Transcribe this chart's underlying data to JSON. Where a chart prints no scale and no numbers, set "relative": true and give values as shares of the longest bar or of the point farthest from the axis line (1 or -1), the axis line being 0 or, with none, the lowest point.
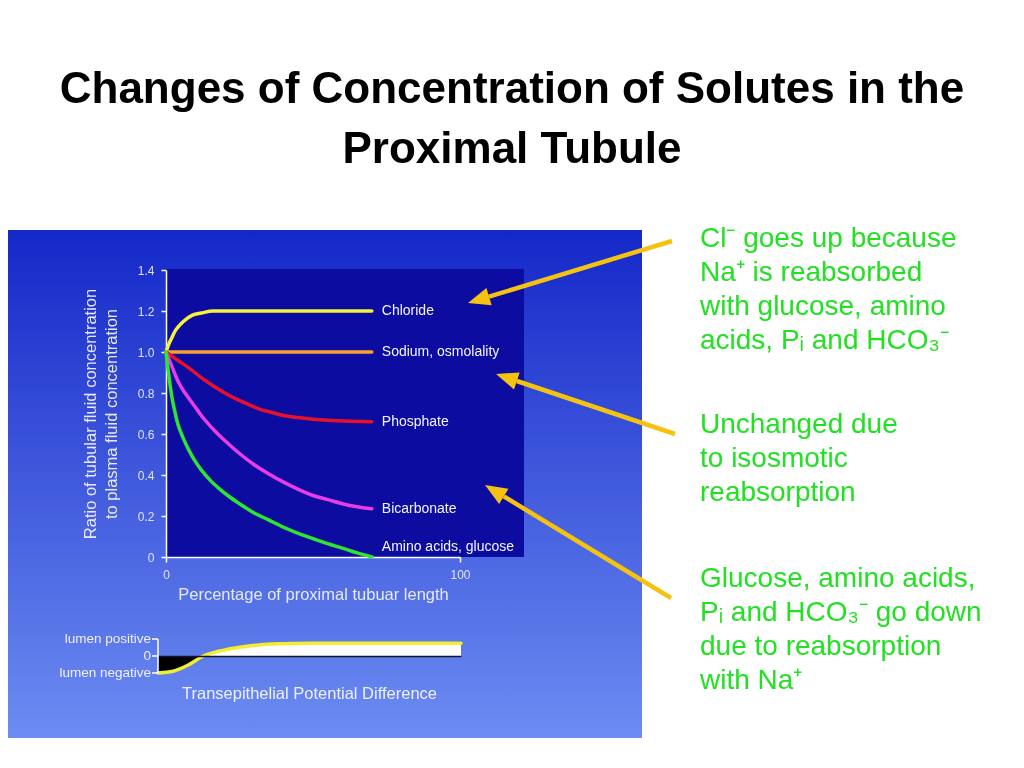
{
  "chart_data": [
    {
      "type": "line",
      "title": "Changes of Concentration of Solutes in the Proximal Tubule",
      "xlabel": "Percentage of proximal tubuar length",
      "ylabel": "Ratio of tubular fluid concentration\nto plasma fluid concentration",
      "xlim": [
        0,
        100
      ],
      "xticks": [
        0,
        100
      ],
      "ylim": [
        0,
        1.4
      ],
      "yticks": [
        0,
        0.2,
        0.4,
        0.6,
        0.8,
        {
          "value": 1,
          "label": "1.0"
        },
        1.2,
        1.4
      ],
      "series": [
        {
          "name": "Chloride",
          "color": "#f6f23a",
          "x": [
            0,
            1,
            2,
            3,
            4,
            6,
            9,
            12,
            16,
            70
          ],
          "values": [
            1,
            1.04,
            1.07,
            1.1,
            1.12,
            1.15,
            1.18,
            1.19,
            1.2,
            1.2
          ]
        },
        {
          "name": "Sodium, osmolality",
          "color": "#f5a030",
          "x": [
            0,
            70
          ],
          "values": [
            1,
            1
          ]
        },
        {
          "name": "Phosphate",
          "color": "#e8102c",
          "x": [
            0,
            4,
            8,
            12,
            16,
            20,
            24,
            28,
            32,
            36,
            40,
            45,
            50,
            55,
            60,
            70
          ],
          "values": [
            1,
            0.96,
            0.92,
            0.875,
            0.835,
            0.8,
            0.77,
            0.745,
            0.72,
            0.705,
            0.69,
            0.68,
            0.672,
            0.667,
            0.664,
            0.66
          ]
        },
        {
          "name": "Bicarbonate",
          "color": "#e83ce8",
          "x": [
            0,
            2,
            4,
            6,
            8,
            10,
            12,
            15,
            18,
            21,
            25,
            30,
            35,
            40,
            45,
            50,
            55,
            60,
            65,
            70
          ],
          "values": [
            1,
            0.93,
            0.86,
            0.81,
            0.77,
            0.73,
            0.69,
            0.64,
            0.595,
            0.555,
            0.505,
            0.45,
            0.405,
            0.365,
            0.33,
            0.3,
            0.28,
            0.26,
            0.245,
            0.235
          ]
        },
        {
          "name": "Amino acids, glucose",
          "color": "#2ee62e",
          "x": [
            0,
            1,
            2,
            3,
            4,
            5,
            6,
            8,
            10,
            12,
            15,
            18,
            21,
            25,
            30,
            35,
            40,
            45,
            50,
            55,
            60,
            65,
            70
          ],
          "values": [
            1,
            0.88,
            0.78,
            0.71,
            0.65,
            0.61,
            0.575,
            0.515,
            0.465,
            0.425,
            0.375,
            0.335,
            0.3,
            0.26,
            0.215,
            0.18,
            0.145,
            0.115,
            0.09,
            0.065,
            0.043,
            0.02,
            0
          ]
        }
      ],
      "annotations": [
        "Cl⁻ goes up because\nNa⁺ is reabsorbed\nwith glucose, amino\nacids, Pᵢ and HCO₃⁻",
        "Unchanged due\nto isosmotic\nreabsorption",
        "Glucose, amino acids,\nPᵢ and HCO₃⁻ go down\ndue to reabsorption\nwith Na⁺"
      ]
    },
    {
      "type": "area",
      "title": "Transepithelial Potential Difference",
      "relative": true,
      "categories": [
        null,
        null,
        null,
        null,
        null,
        null,
        null,
        null,
        null,
        null,
        null,
        null,
        null,
        null,
        null,
        null,
        null,
        null,
        null,
        null,
        null
      ],
      "series": [
        {
          "color": "#000000",
          "values": [
            -1,
            -0.9,
            -0.53,
            0,
            null,
            null,
            null,
            null,
            null,
            null,
            null,
            null,
            null,
            null,
            null,
            null,
            null,
            null,
            null,
            null,
            null
          ]
        },
        {
          "color": "#ffffff",
          "values": [
            null,
            null,
            null,
            0,
            0.28,
            0.46,
            0.59,
            0.67,
            0.72,
            0.74,
            0.75,
            0.75,
            0.75,
            0.75,
            0.75,
            0.75,
            0.75,
            0.75,
            0.75,
            0.75,
            0.75
          ]
        },
        {
          "type": "line",
          "color": "#f2ee30",
          "values": [
            -1,
            -0.9,
            -0.53,
            0,
            0.28,
            0.46,
            0.59,
            0.67,
            0.72,
            0.74,
            0.75,
            0.75,
            0.75,
            0.75,
            0.75,
            0.75,
            0.75,
            0.75,
            0.75,
            0.75,
            0.75
          ]
        }
      ],
      "annotations": [
        "lumen positive",
        "0",
        "lumen negative"
      ]
    }
  ]
}
